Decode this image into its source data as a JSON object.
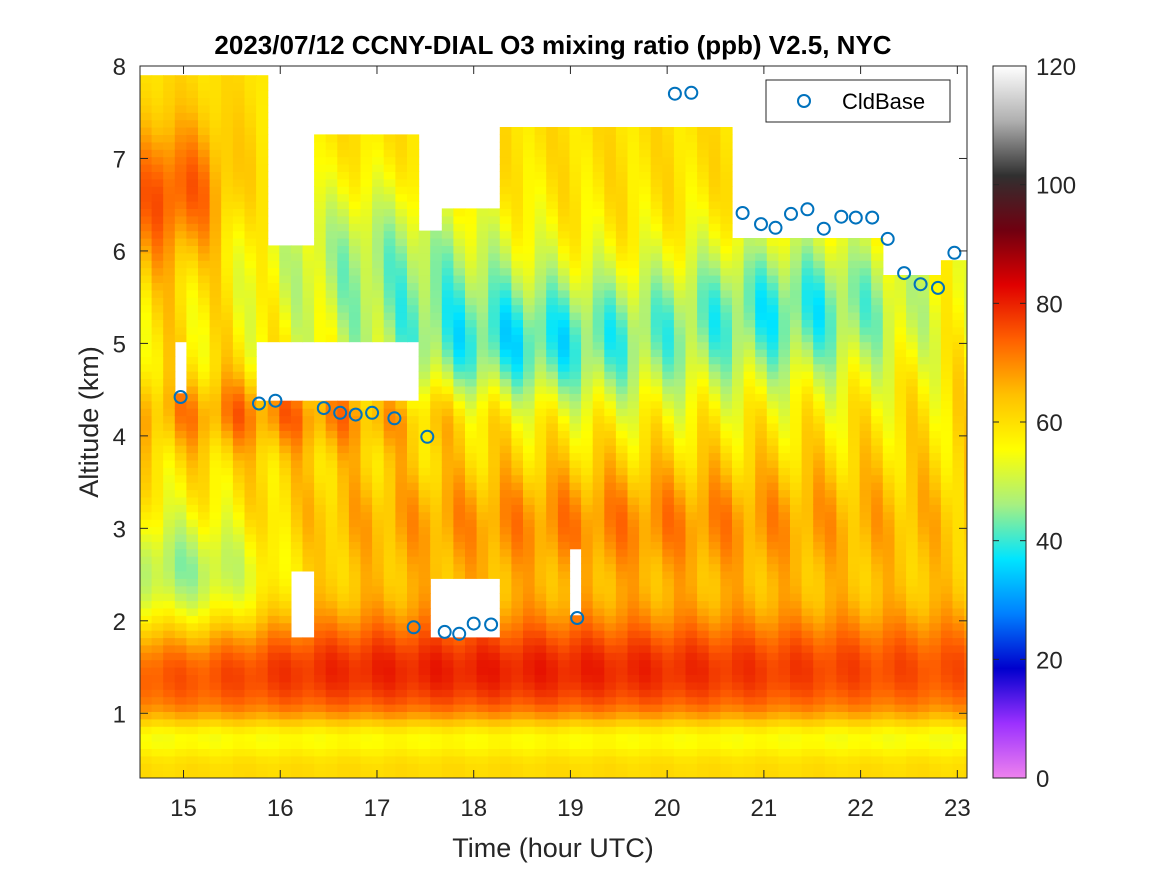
{
  "chart_data": {
    "type": "heatmap",
    "title": "2023/07/12 CCNY-DIAL O3 mixing ratio (ppb) V2.5, NYC",
    "xlabel": "Time (hour UTC)",
    "ylabel": "Altitude (km)",
    "xlim": [
      14.55,
      23.1
    ],
    "ylim": [
      0.3,
      8
    ],
    "x_ticks": [
      "15",
      "16",
      "17",
      "18",
      "19",
      "20",
      "21",
      "22",
      "23"
    ],
    "y_ticks": [
      "1",
      "2",
      "3",
      "4",
      "5",
      "6",
      "7",
      "8"
    ],
    "colorbar": {
      "label_ticks": [
        "0",
        "20",
        "40",
        "60",
        "80",
        "100",
        "120"
      ],
      "range": [
        0,
        120
      ],
      "colormap": [
        "#ee82ee",
        "#9b30ff",
        "#0000cd",
        "#0080ff",
        "#00e5ff",
        "#a8f080",
        "#ffff00",
        "#ffc000",
        "#ff6000",
        "#e00000",
        "#700010",
        "#303030",
        "#b0b0b0",
        "#ffffff"
      ]
    },
    "legend": {
      "position": "top-right",
      "entries": [
        "CldBase"
      ]
    },
    "series": [
      {
        "name": "CldBase",
        "marker": "circle",
        "color": "#0072bd",
        "x": [
          14.97,
          15.78,
          15.95,
          16.45,
          16.62,
          16.78,
          16.95,
          17.18,
          17.38,
          17.52,
          17.7,
          17.85,
          18.0,
          18.18,
          19.07,
          20.08,
          20.25,
          20.78,
          20.97,
          21.12,
          21.28,
          21.45,
          21.62,
          21.8,
          21.95,
          22.12,
          22.28,
          22.45,
          22.62,
          22.8,
          22.97
        ],
        "y": [
          4.42,
          4.35,
          4.38,
          4.3,
          4.25,
          4.23,
          4.25,
          4.19,
          1.93,
          3.99,
          1.88,
          1.86,
          1.97,
          1.96,
          2.03,
          7.7,
          7.71,
          6.41,
          6.29,
          6.25,
          6.4,
          6.45,
          6.24,
          6.37,
          6.36,
          6.36,
          6.13,
          5.76,
          5.64,
          5.6,
          5.98
        ]
      }
    ],
    "grid": false
  }
}
